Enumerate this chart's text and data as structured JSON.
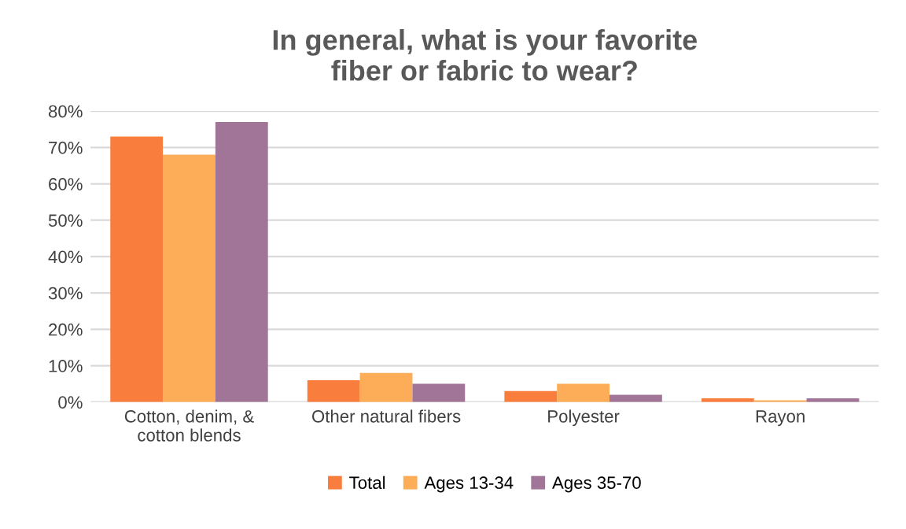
{
  "chart_data": {
    "type": "bar",
    "title": "In general, what is your favorite\nfiber or fabric to wear?",
    "categories": [
      "Cotton, denim, &\ncotton blends",
      "Other natural fibers",
      "Polyester",
      "Rayon"
    ],
    "series": [
      {
        "name": "Total",
        "color": "#f97d3c",
        "values": [
          73,
          6,
          3,
          1
        ]
      },
      {
        "name": "Ages 13-34",
        "color": "#fdad58",
        "values": [
          68,
          8,
          5,
          0.5
        ]
      },
      {
        "name": "Ages 35-70",
        "color": "#a07597",
        "values": [
          77,
          5,
          2,
          1
        ]
      }
    ],
    "ylim": [
      0,
      80
    ],
    "yticks": [
      {
        "value": 0,
        "label": "0%"
      },
      {
        "value": 10,
        "label": "10%"
      },
      {
        "value": 20,
        "label": "20%"
      },
      {
        "value": 30,
        "label": "30%"
      },
      {
        "value": 40,
        "label": "40%"
      },
      {
        "value": 50,
        "label": "50%"
      },
      {
        "value": 60,
        "label": "60%"
      },
      {
        "value": 70,
        "label": "70%"
      },
      {
        "value": 80,
        "label": "80%"
      }
    ],
    "grid": "y",
    "legend": "bottom"
  }
}
